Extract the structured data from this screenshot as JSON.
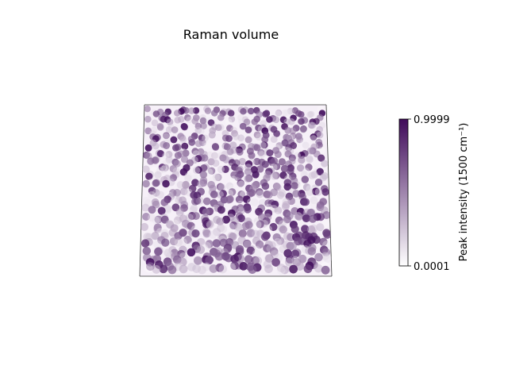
{
  "chart_data": {
    "type": "scatter",
    "subtype": "3d-volume-scatter",
    "title": "Raman volume",
    "xlabel": "",
    "ylabel": "",
    "zlabel": "",
    "axes_visible": false,
    "grid": false,
    "marker_color": "#3f0a5a",
    "colorbar": {
      "label": "Peak intensity (1500 cm⁻¹)",
      "min": 0.0001,
      "max": 0.9999,
      "tick_labels": [
        "0.9999",
        "0.0001"
      ],
      "colormap": "white-to-purple",
      "color_low": "#ffffff",
      "color_high": "#3f0a5a",
      "placement": "right"
    },
    "volume": {
      "grid_x": 20,
      "grid_y": 20,
      "points_per_cell": 1,
      "value_range": [
        0.0001,
        0.9999
      ]
    }
  }
}
